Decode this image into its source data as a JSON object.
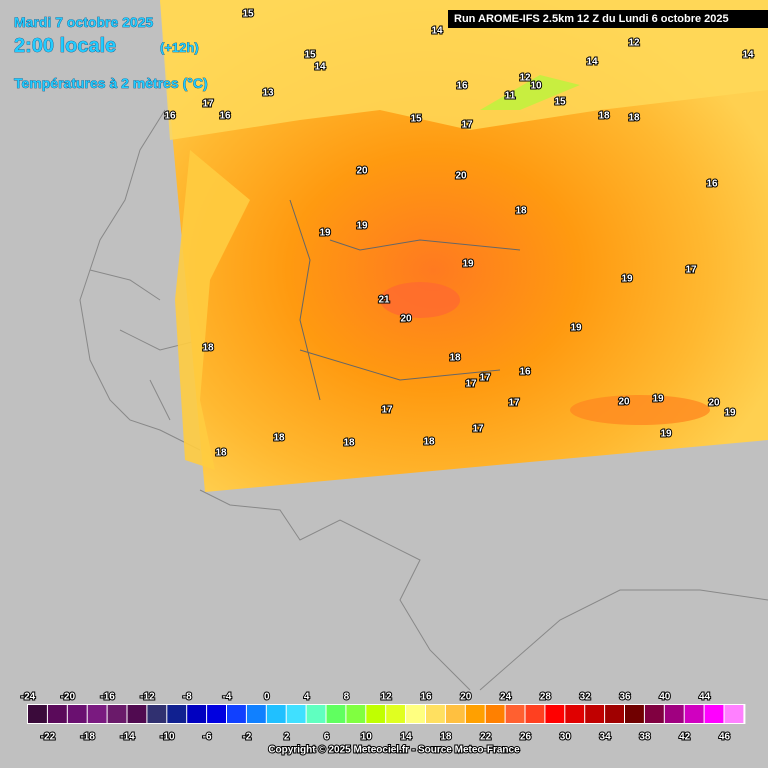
{
  "header": {
    "date": "Mardi 7 octobre 2025",
    "time": "2:00 locale",
    "lead": "(+12h)",
    "variable": "Températures à 2 mètres (°C)",
    "run": "Run AROME-IFS 2.5km 12 Z du Lundi 6 octobre 2025"
  },
  "map": {
    "labels": [
      15,
      14,
      15,
      14,
      12,
      14,
      14,
      13,
      17,
      16,
      16,
      16,
      12,
      10,
      11,
      15,
      15,
      17,
      18,
      18,
      20,
      20,
      16,
      18,
      19,
      19,
      19,
      17,
      19,
      21,
      20,
      19,
      18,
      18,
      16,
      17,
      17,
      20,
      19,
      20,
      19,
      17,
      17,
      17,
      18,
      18,
      18,
      19,
      18
    ]
  },
  "colorbar": {
    "ticks": [
      -24,
      -22,
      -20,
      -18,
      -16,
      -14,
      -12,
      -10,
      -8,
      -6,
      -4,
      -2,
      0,
      2,
      4,
      6,
      8,
      10,
      12,
      14,
      16,
      18,
      20,
      22,
      24,
      26,
      28,
      30,
      32,
      34,
      36,
      38,
      40,
      42,
      44,
      46
    ],
    "colors": [
      "#3a0a3a",
      "#5a0a5a",
      "#6a1070",
      "#7a1a80",
      "#6a1a6a",
      "#500a50",
      "#303070",
      "#102090",
      "#0000c0",
      "#0000e0",
      "#1040ff",
      "#1080ff",
      "#20c0ff",
      "#40e0ff",
      "#60ffc0",
      "#60ff60",
      "#80ff40",
      "#c0ff00",
      "#e0ff20",
      "#ffff80",
      "#ffe060",
      "#ffc040",
      "#ffa000",
      "#ff8000",
      "#ff6030",
      "#ff4020",
      "#ff0000",
      "#e00000",
      "#c00000",
      "#a00000",
      "#700000",
      "#800040",
      "#a00080",
      "#d000c0",
      "#ff00ff",
      "#ff80ff"
    ]
  },
  "footer": {
    "copyright": "Copyright © 2025 Meteociel.fr - Source Meteo-France"
  }
}
